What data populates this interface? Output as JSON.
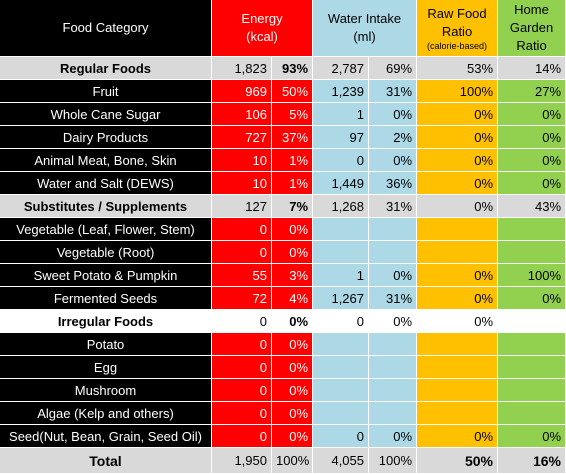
{
  "headers": {
    "category": "Food Category",
    "energy": "Energy",
    "energy_unit": "(kcal)",
    "water": "Water Intake",
    "water_unit": "(ml)",
    "raw_line1": "Raw Food",
    "raw_line2": "Ratio",
    "raw_note": "(calorie-based)",
    "garden_line1": "Home",
    "garden_line2": "Garden",
    "garden_line3": "Ratio"
  },
  "rows": [
    {
      "type": "group",
      "name": "Regular Foods",
      "energy": "1,823",
      "energy_pct": "93%",
      "water": "2,787",
      "water_pct": "69%",
      "raw": "53%",
      "garden": "14%"
    },
    {
      "type": "item",
      "name": "Fruit",
      "energy": "969",
      "energy_pct": "50%",
      "water": "1,239",
      "water_pct": "31%",
      "raw": "100%",
      "garden": "27%"
    },
    {
      "type": "item",
      "name": "Whole Cane Sugar",
      "energy": "106",
      "energy_pct": "5%",
      "water": "1",
      "water_pct": "0%",
      "raw": "0%",
      "garden": "0%"
    },
    {
      "type": "item",
      "name": "Dairy Products",
      "energy": "727",
      "energy_pct": "37%",
      "water": "97",
      "water_pct": "2%",
      "raw": "0%",
      "garden": "0%"
    },
    {
      "type": "item",
      "name": "Animal Meat, Bone, Skin",
      "energy": "10",
      "energy_pct": "1%",
      "water": "0",
      "water_pct": "0%",
      "raw": "0%",
      "garden": "0%"
    },
    {
      "type": "item",
      "name": "Water and Salt (DEWS)",
      "energy": "10",
      "energy_pct": "1%",
      "water": "1,449",
      "water_pct": "36%",
      "raw": "0%",
      "garden": "0%"
    },
    {
      "type": "group",
      "name": "Substitutes / Supplements",
      "energy": "127",
      "energy_pct": "7%",
      "water": "1,268",
      "water_pct": "31%",
      "raw": "0%",
      "garden": "43%"
    },
    {
      "type": "item",
      "name": "Vegetable (Leaf, Flower, Stem)",
      "energy": "0",
      "energy_pct": "0%",
      "water": "",
      "water_pct": "",
      "raw": "",
      "garden": ""
    },
    {
      "type": "item",
      "name": "Vegetable (Root)",
      "energy": "0",
      "energy_pct": "0%",
      "water": "",
      "water_pct": "",
      "raw": "",
      "garden": ""
    },
    {
      "type": "item",
      "name": "Sweet Potato & Pumpkin",
      "energy": "55",
      "energy_pct": "3%",
      "water": "1",
      "water_pct": "0%",
      "raw": "0%",
      "garden": "100%"
    },
    {
      "type": "item",
      "name": "Fermented Seeds",
      "energy": "72",
      "energy_pct": "4%",
      "water": "1,267",
      "water_pct": "31%",
      "raw": "0%",
      "garden": "0%"
    },
    {
      "type": "group-white",
      "name": "Irregular Foods",
      "energy": "0",
      "energy_pct": "0%",
      "water": "0",
      "water_pct": "0%",
      "raw": "0%",
      "garden": ""
    },
    {
      "type": "item",
      "name": "Potato",
      "energy": "0",
      "energy_pct": "0%",
      "water": "",
      "water_pct": "",
      "raw": "",
      "garden": ""
    },
    {
      "type": "item",
      "name": "Egg",
      "energy": "0",
      "energy_pct": "0%",
      "water": "",
      "water_pct": "",
      "raw": "",
      "garden": ""
    },
    {
      "type": "item",
      "name": "Mushroom",
      "energy": "0",
      "energy_pct": "0%",
      "water": "",
      "water_pct": "",
      "raw": "",
      "garden": ""
    },
    {
      "type": "item",
      "name": "Algae (Kelp and others)",
      "energy": "0",
      "energy_pct": "0%",
      "water": "",
      "water_pct": "",
      "raw": "",
      "garden": ""
    },
    {
      "type": "item",
      "name": "Seed(Nut, Bean, Grain, Seed Oil)",
      "energy": "0",
      "energy_pct": "0%",
      "water": "0",
      "water_pct": "0%",
      "raw": "0%",
      "garden": "0%"
    }
  ],
  "total": {
    "name": "Total",
    "energy": "1,950",
    "energy_pct": "100%",
    "water": "4,055",
    "water_pct": "100%",
    "raw": "50%",
    "garden": "16%"
  },
  "colors": {
    "energy": "#ff0000",
    "water": "#add8e6",
    "raw": "#ffc000",
    "garden": "#92d050",
    "header": "#000000",
    "group": "#d9d9d9"
  }
}
